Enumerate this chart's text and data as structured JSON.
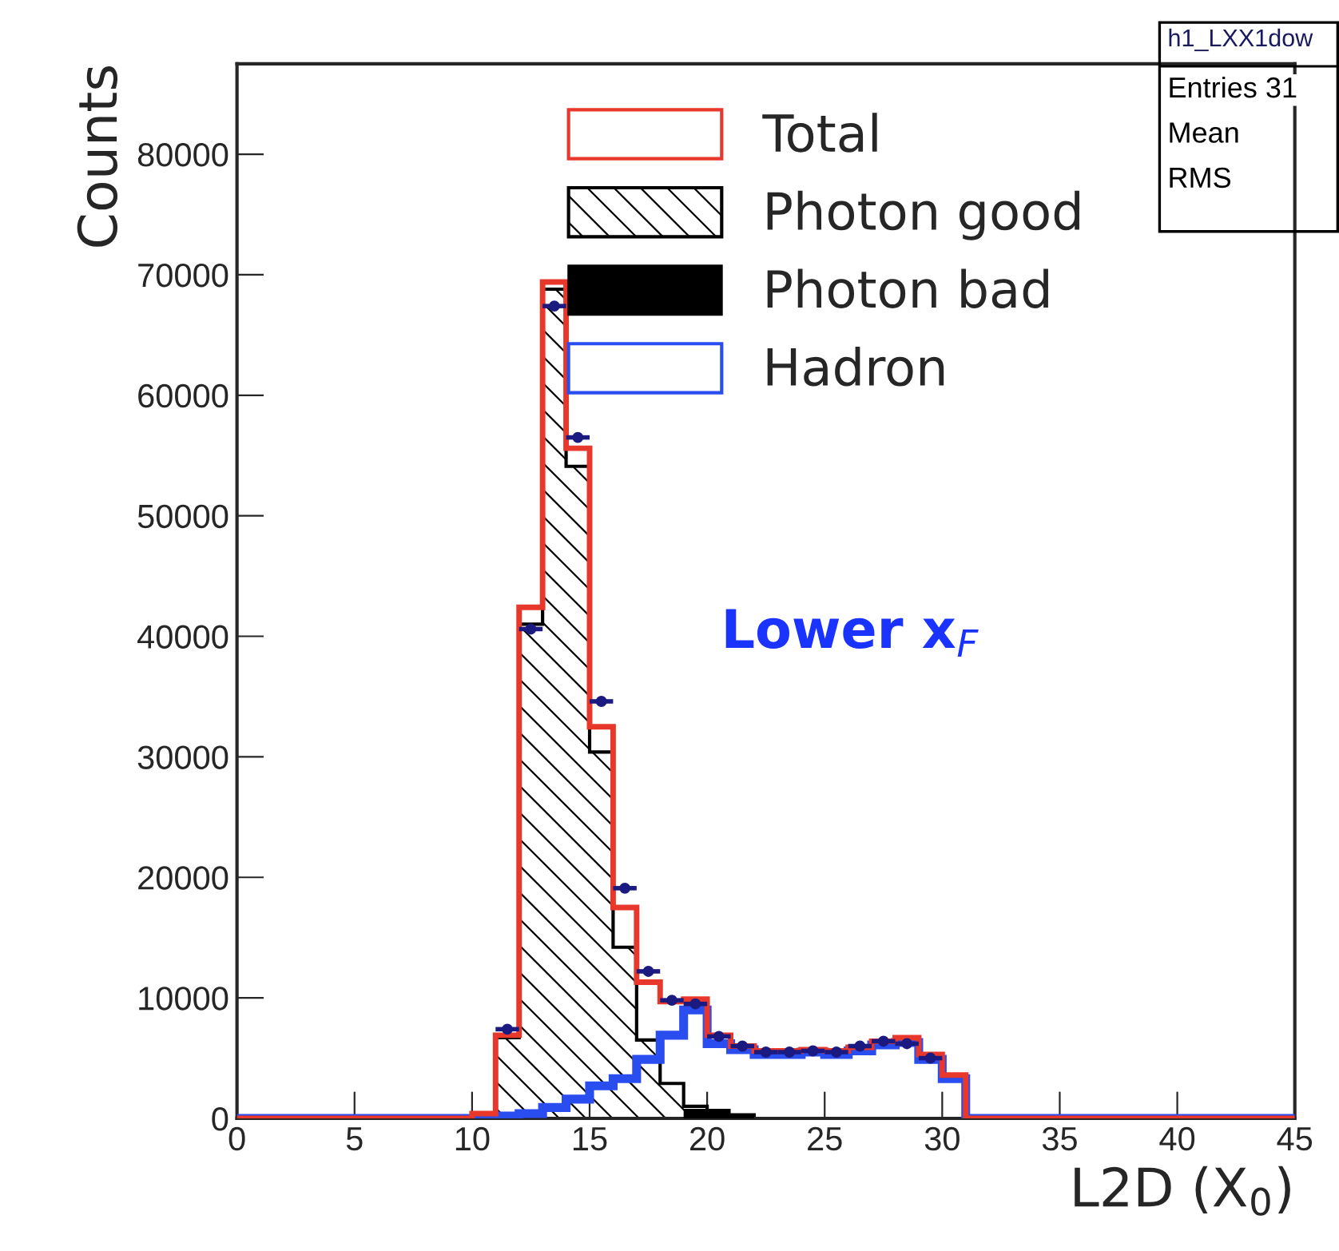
{
  "chart_data": {
    "type": "histogram",
    "xlabel": "L2D (X$_{0}$)",
    "ylabel": "Counts",
    "bins": [
      0,
      1,
      2,
      3,
      4,
      5,
      6,
      7,
      8,
      9,
      10,
      11,
      12,
      13,
      14,
      15,
      16,
      17,
      18,
      19,
      20,
      21,
      22,
      23,
      24,
      25,
      26,
      27,
      28,
      29,
      30,
      31,
      32,
      33,
      34,
      35,
      36,
      37,
      38,
      39,
      40,
      41,
      42,
      43,
      44,
      45
    ],
    "series": [
      {
        "name": "Total",
        "color": "#e8382c",
        "values": [
          0,
          0,
          0,
          0,
          0,
          0,
          0,
          0,
          0,
          0,
          400,
          6900,
          42400,
          69400,
          55600,
          32500,
          17500,
          11300,
          9700,
          9900,
          6900,
          6000,
          5600,
          5600,
          5700,
          5600,
          5900,
          6400,
          6700,
          5300,
          3600,
          0,
          0,
          0,
          0,
          0,
          0,
          0,
          0,
          0,
          0,
          0,
          0,
          0,
          0
        ]
      },
      {
        "name": "Photon good",
        "color": "#000000",
        "values": [
          0,
          0,
          0,
          0,
          0,
          0,
          0,
          0,
          0,
          0,
          300,
          6700,
          41000,
          68800,
          54100,
          30400,
          14200,
          6500,
          2900,
          1000,
          null,
          300,
          0,
          0,
          0,
          0,
          0,
          0,
          0,
          0,
          0,
          0,
          0,
          0,
          0,
          0,
          0,
          0,
          0,
          0,
          0,
          0,
          0,
          0,
          0
        ]
      },
      {
        "name": "Photon bad",
        "color": "#000000",
        "values": [
          0,
          0,
          0,
          0,
          0,
          0,
          0,
          0,
          0,
          0,
          0,
          0,
          0,
          0,
          0,
          0,
          0,
          0,
          0,
          800,
          800,
          300,
          0,
          0,
          0,
          0,
          0,
          0,
          0,
          0,
          0,
          0,
          0,
          0,
          0,
          0,
          0,
          0,
          0,
          0,
          0,
          0,
          0,
          0,
          0
        ]
      },
      {
        "name": "Hadron",
        "color": "#2a4df0",
        "values": [
          0,
          0,
          0,
          0,
          0,
          0,
          0,
          0,
          0,
          0,
          0,
          200,
          400,
          900,
          1600,
          2700,
          3300,
          4900,
          6900,
          9000,
          6200,
          5700,
          5300,
          5300,
          5500,
          5300,
          5600,
          6100,
          6300,
          4900,
          3300,
          0,
          0,
          0,
          0,
          0,
          0,
          0,
          0,
          0,
          0,
          0,
          0,
          0,
          0
        ]
      },
      {
        "type": "scatter",
        "color": "#1a1a80",
        "x": [
          11.5,
          12.5,
          13.5,
          14.5,
          15.5,
          16.5,
          17.5,
          18.5,
          19.5,
          20.5,
          21.5,
          22.5,
          23.5,
          24.5,
          25.5,
          26.5,
          27.5,
          28.5,
          29.5
        ],
        "values": [
          7400,
          40600,
          67400,
          56500,
          34600,
          19100,
          12200,
          9800,
          9500,
          6800,
          6000,
          5500,
          5500,
          5600,
          5500,
          6000,
          6400,
          6200,
          5000
        ],
        "xerrors": [
          0.5,
          0.5,
          0.5,
          0.5,
          0.5,
          0.5,
          0.5,
          0.5,
          0.5,
          0.5,
          0.5,
          0.5,
          0.5,
          0.5,
          0.5,
          0.5,
          0.5,
          0.5,
          0.5
        ]
      }
    ],
    "xlim": [
      0,
      45
    ],
    "ylim": [
      0,
      87500
    ],
    "xticks": [
      0,
      5,
      10,
      15,
      20,
      25,
      30,
      35,
      40,
      45
    ],
    "yticks": [
      0,
      10000,
      20000,
      30000,
      40000,
      50000,
      60000,
      70000,
      80000
    ],
    "annotations": [
      "Lower x$_{F}$",
      "h1_LXX1dow",
      "Entries 31",
      "Mean",
      "RMS"
    ],
    "legend": "top",
    "grid": false,
    "marker": "circle"
  }
}
